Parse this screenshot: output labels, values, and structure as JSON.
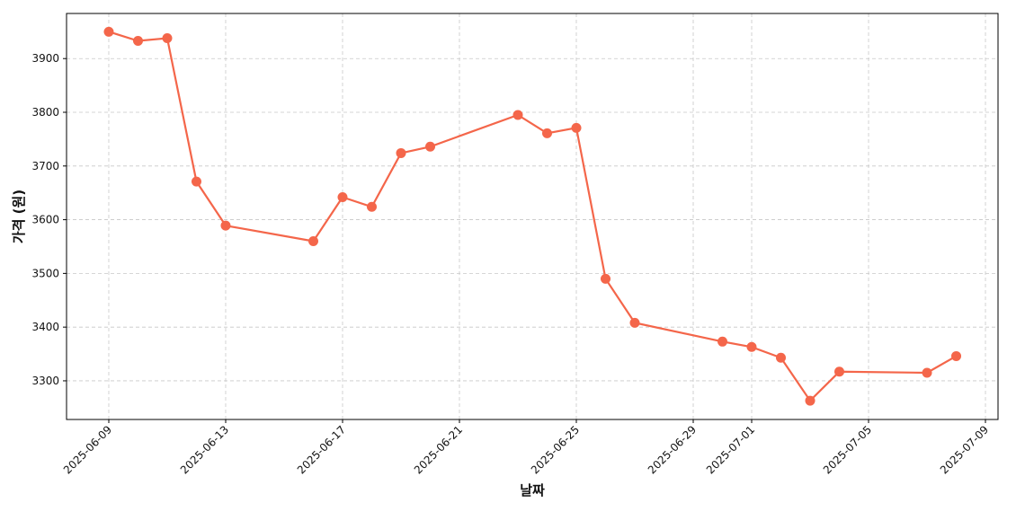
{
  "chart_data": {
    "type": "line",
    "x_label": "날짜",
    "y_label": "가격 (원)",
    "x": [
      "2025-06-09",
      "2025-06-10",
      "2025-06-11",
      "2025-06-12",
      "2025-06-13",
      "2025-06-16",
      "2025-06-17",
      "2025-06-18",
      "2025-06-19",
      "2025-06-20",
      "2025-06-23",
      "2025-06-24",
      "2025-06-25",
      "2025-06-26",
      "2025-06-27",
      "2025-06-30",
      "2025-07-01",
      "2025-07-02",
      "2025-07-03",
      "2025-07-04",
      "2025-07-07",
      "2025-07-08"
    ],
    "series": [
      {
        "color": "#f4664a",
        "values": [
          3950,
          3933,
          3938,
          3671,
          3589,
          3560,
          3642,
          3624,
          3724,
          3736,
          3795,
          3761,
          3771,
          3490,
          3408,
          3373,
          3363,
          3343,
          3263,
          3317,
          3315,
          3346
        ]
      }
    ],
    "xlim": [
      "2025-06-07T13:18:00Z",
      "2025-07-09T10:20:00Z"
    ],
    "xticks": [
      "2025-06-09",
      "2025-06-13",
      "2025-06-17",
      "2025-06-21",
      "2025-06-25",
      "2025-06-29",
      "2025-07-01",
      "2025-07-05",
      "2025-07-09"
    ],
    "ylim": [
      3228,
      3984
    ],
    "yticks": [
      3300,
      3400,
      3500,
      3600,
      3700,
      3800,
      3900
    ],
    "grid": true
  }
}
